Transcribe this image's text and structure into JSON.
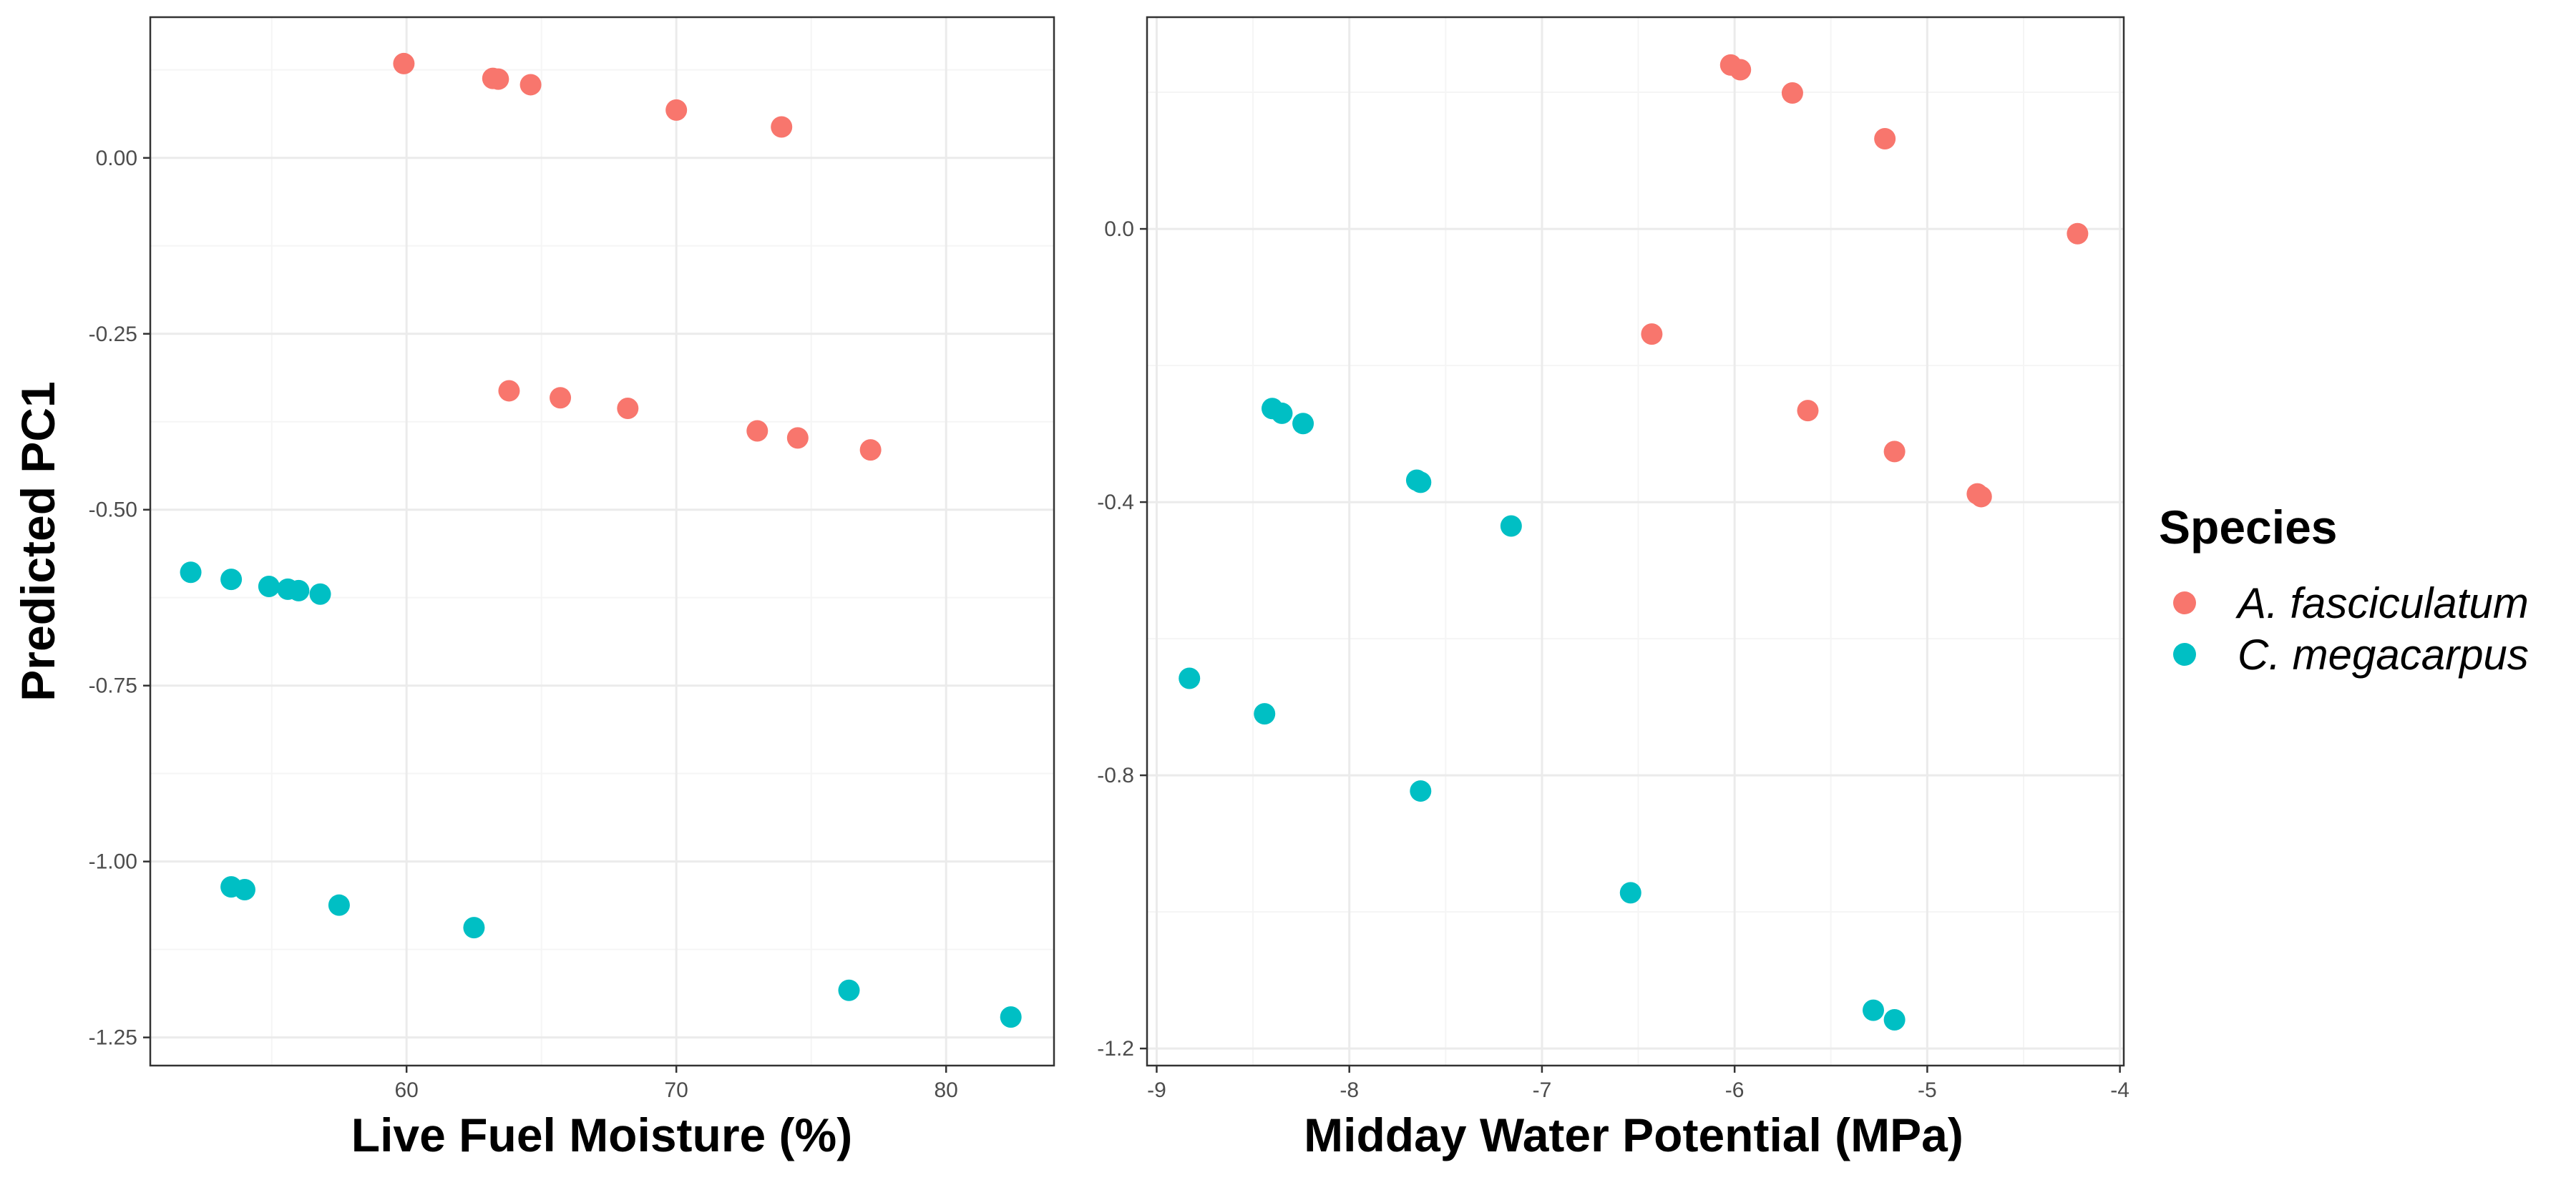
{
  "colors": {
    "A. fasciculatum": "#F8766D",
    "C. megacarpus": "#00BFC4",
    "panel_border": "#333333",
    "grid_major": "#EBEBEB",
    "grid_minor": "#F5F5F5"
  },
  "legend": {
    "title": "Species",
    "position": "right",
    "items": [
      {
        "label": "A. fasciculatum",
        "color": "#F8766D"
      },
      {
        "label": "C. megacarpus",
        "color": "#00BFC4"
      }
    ]
  },
  "chart_data": [
    {
      "type": "scatter",
      "xlabel": "Live Fuel Moisture (%)",
      "ylabel": "Predicted PC1",
      "xlim": [
        50.5,
        84.0
      ],
      "ylim": [
        -1.29,
        0.2
      ],
      "xticks": [
        60,
        70,
        80
      ],
      "xtick_labels": [
        "60",
        "70",
        "80"
      ],
      "yticks": [
        0.0,
        -0.25,
        -0.5,
        -0.75,
        -1.0,
        -1.25
      ],
      "ytick_labels": [
        "0.00",
        "-0.25",
        "-0.50",
        "-0.75",
        "-1.00",
        "-1.25"
      ],
      "grid": true,
      "series": [
        {
          "name": "A. fasciculatum",
          "points": [
            [
              59.9,
              0.134
            ],
            [
              63.2,
              0.113
            ],
            [
              63.4,
              0.112
            ],
            [
              64.6,
              0.104
            ],
            [
              70.0,
              0.068
            ],
            [
              73.9,
              0.044
            ],
            [
              63.8,
              -0.331
            ],
            [
              65.7,
              -0.341
            ],
            [
              68.2,
              -0.356
            ],
            [
              73.0,
              -0.388
            ],
            [
              74.5,
              -0.398
            ],
            [
              77.2,
              -0.415
            ]
          ]
        },
        {
          "name": "C. megacarpus",
          "points": [
            [
              52.0,
              -0.589
            ],
            [
              53.5,
              -0.599
            ],
            [
              54.9,
              -0.609
            ],
            [
              55.6,
              -0.613
            ],
            [
              56.0,
              -0.615
            ],
            [
              56.8,
              -0.62
            ],
            [
              53.5,
              -1.036
            ],
            [
              54.0,
              -1.04
            ],
            [
              57.5,
              -1.062
            ],
            [
              62.5,
              -1.094
            ],
            [
              76.4,
              -1.183
            ],
            [
              82.4,
              -1.221
            ]
          ]
        }
      ]
    },
    {
      "type": "scatter",
      "xlabel": "Midday Water Potential (MPa)",
      "ylabel": "",
      "xlim": [
        -9.05,
        -3.98
      ],
      "ylim": [
        -1.225,
        0.31
      ],
      "xticks": [
        -9,
        -8,
        -7,
        -6,
        -5,
        -4
      ],
      "xtick_labels": [
        "-9",
        "-8",
        "-7",
        "-6",
        "-5",
        "-4"
      ],
      "yticks": [
        0.0,
        -0.4,
        -0.8,
        -1.2
      ],
      "ytick_labels": [
        "0.0",
        "-0.4",
        "-0.8",
        "-1.2"
      ],
      "grid": true,
      "series": [
        {
          "name": "A. fasciculatum",
          "points": [
            [
              -6.02,
              0.24
            ],
            [
              -5.97,
              0.233
            ],
            [
              -5.7,
              0.199
            ],
            [
              -5.22,
              0.132
            ],
            [
              -4.22,
              -0.007
            ],
            [
              -6.43,
              -0.154
            ],
            [
              -5.62,
              -0.266
            ],
            [
              -5.17,
              -0.326
            ],
            [
              -4.74,
              -0.388
            ],
            [
              -4.72,
              -0.392
            ]
          ]
        },
        {
          "name": "C. megacarpus",
          "points": [
            [
              -8.4,
              -0.263
            ],
            [
              -8.35,
              -0.27
            ],
            [
              -8.24,
              -0.285
            ],
            [
              -7.65,
              -0.368
            ],
            [
              -7.63,
              -0.371
            ],
            [
              -7.16,
              -0.435
            ],
            [
              -8.83,
              -0.658
            ],
            [
              -8.44,
              -0.71
            ],
            [
              -7.63,
              -0.823
            ],
            [
              -6.54,
              -0.972
            ],
            [
              -5.28,
              -1.144
            ],
            [
              -5.17,
              -1.158
            ]
          ]
        }
      ]
    }
  ]
}
